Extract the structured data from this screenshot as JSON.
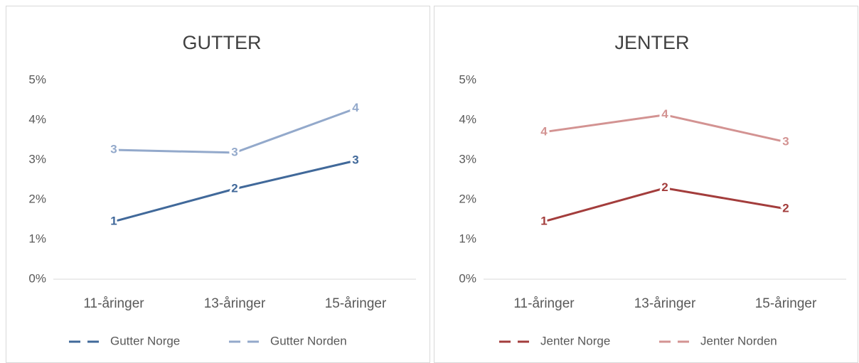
{
  "chart_data": [
    {
      "type": "line",
      "title": "GUTTER",
      "categories": [
        "11-åringer",
        "13-åringer",
        "15-åringer"
      ],
      "series": [
        {
          "name": "Gutter Norge",
          "color": "#41699a",
          "values": [
            1.45,
            2.27,
            2.98
          ],
          "value_labels": [
            "1",
            "2",
            "3"
          ]
        },
        {
          "name": "Gutter Norden",
          "color": "#93a9cb",
          "values": [
            3.25,
            3.18,
            4.29
          ],
          "value_labels": [
            "3",
            "3",
            "4"
          ]
        }
      ],
      "ylim": [
        0,
        5
      ],
      "yticks": [
        {
          "value": 0,
          "label": "0%"
        },
        {
          "value": 1,
          "label": "1%"
        },
        {
          "value": 2,
          "label": "2%"
        },
        {
          "value": 3,
          "label": "3%"
        },
        {
          "value": 4,
          "label": "4%"
        },
        {
          "value": 5,
          "label": "5%"
        }
      ],
      "grid": false,
      "legend": "bottom"
    },
    {
      "type": "line",
      "title": "JENTER",
      "categories": [
        "11-åringer",
        "13-åringer",
        "15-åringer"
      ],
      "series": [
        {
          "name": "Jenter Norge",
          "color": "#a33d3c",
          "values": [
            1.45,
            2.29,
            1.77
          ],
          "value_labels": [
            "1",
            "2",
            "2"
          ]
        },
        {
          "name": "Jenter Norden",
          "color": "#d39392",
          "values": [
            3.7,
            4.13,
            3.45
          ],
          "value_labels": [
            "4",
            "4",
            "3"
          ]
        }
      ],
      "ylim": [
        0,
        5
      ],
      "yticks": [
        {
          "value": 0,
          "label": "0%"
        },
        {
          "value": 1,
          "label": "1%"
        },
        {
          "value": 2,
          "label": "2%"
        },
        {
          "value": 3,
          "label": "3%"
        },
        {
          "value": 4,
          "label": "4%"
        },
        {
          "value": 5,
          "label": "5%"
        }
      ],
      "grid": false,
      "legend": "bottom"
    }
  ]
}
